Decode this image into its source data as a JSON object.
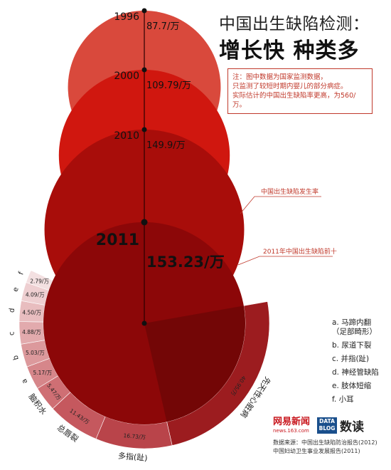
{
  "title": "中国出生缺陷检测：",
  "subtitle": "增长快 种类多",
  "note": [
    "注：图中数据为国家监测数据，",
    "只监测了较短时期内婴儿的部分病症。",
    "实际估计的中国出生缺陷率更高，为560/万。"
  ],
  "callouts": {
    "rate": "中国出生缺陷发生率",
    "top10": "2011年中国出生缺陷前十"
  },
  "colors": {
    "c1996": "#d9493c",
    "c2000": "#d0170f",
    "c2010": "#a80d0a",
    "c2011": "#8c0708",
    "accent": "#c0392b"
  },
  "chart_data": [
    {
      "type": "area",
      "description_kind": "proportional circles",
      "series": [
        {
          "year": "1996",
          "value": 87.7,
          "label": "87.7/万"
        },
        {
          "year": "2000",
          "value": 109.79,
          "label": "109.79/万"
        },
        {
          "year": "2010",
          "value": 149.9,
          "label": "149.9/万"
        },
        {
          "year": "2011",
          "value": 153.23,
          "label": "153.23/万"
        }
      ],
      "unit": "/万"
    },
    {
      "type": "pie",
      "categories": [
        "先天性心脏病",
        "多指(趾)",
        "总唇裂",
        "脑积水",
        "a",
        "b",
        "c",
        "d",
        "e",
        "f"
      ],
      "values": [
        40.95,
        16.73,
        11.43,
        5.47,
        5.17,
        5.03,
        4.88,
        4.5,
        4.09,
        2.79
      ],
      "labels": [
        "40.95/万",
        "16.73/万",
        "11.43/万",
        "5.47/万",
        "5.17/万",
        "5.03/万",
        "4.88/万",
        "4.50/万",
        "4.09/万",
        "2.79/万"
      ],
      "colors": [
        "#9c1c1f",
        "#b9444a",
        "#c5585e",
        "#cf6f74",
        "#d6868a",
        "#dc999c",
        "#e2aaad",
        "#e8bdbf",
        "#eecfd1",
        "#f3e0e1"
      ]
    }
  ],
  "legend": [
    "a. 马蹄内翻",
    "（足部畸形）",
    "b. 尿道下裂",
    "c. 并指(趾)",
    "d. 神经管缺陷",
    "e. 肢体短缩",
    "f. 小耳"
  ],
  "logos": {
    "netease_cn": "网易新闻",
    "netease_en": "news.163.com",
    "data_line1": "DATA",
    "data_line2": "BLOG",
    "dushu": "数读"
  },
  "sources": [
    "数据来源：中国出生缺陷防治报告(2012)",
    "中国妇幼卫生事业发展报告(2011)"
  ]
}
